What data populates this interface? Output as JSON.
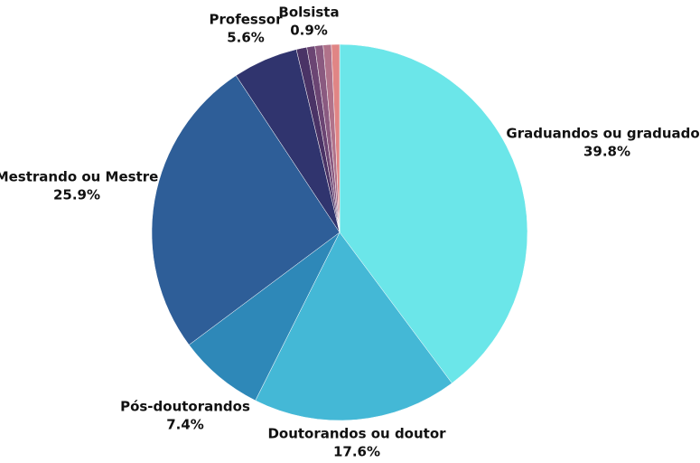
{
  "chart_data": {
    "type": "pie",
    "categories": [
      "Graduandos ou graduados",
      "Doutorandos ou doutor",
      "Pós-doutorandos",
      "Mestrando ou Mestre",
      "Professor",
      "Bolsista",
      null,
      null,
      null,
      null
    ],
    "values": [
      39.8,
      17.6,
      7.4,
      25.9,
      5.6,
      0.9,
      0.7,
      0.7,
      0.7,
      0.7
    ],
    "value_labels": [
      "39.8%",
      "17.6%",
      "7.4%",
      "25.9%",
      "5.6%",
      "0.9%",
      null,
      null,
      null,
      null
    ],
    "colors": [
      "#6be6e9",
      "#44b8d6",
      "#2e88b8",
      "#2e5e98",
      "#30346e",
      "#4a3366",
      "#6b4573",
      "#8a5a80",
      "#b0728a",
      "#e08585"
    ]
  }
}
